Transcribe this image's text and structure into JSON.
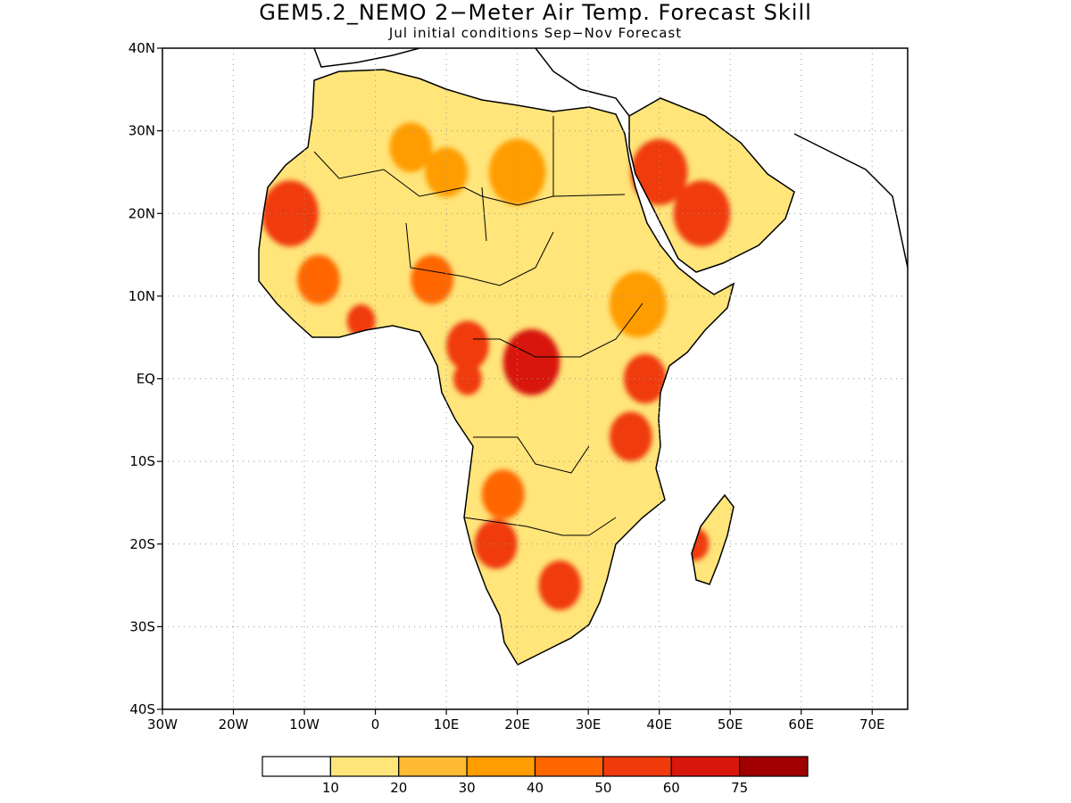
{
  "title": "GEM5.2_NEMO 2−Meter Air Temp. Forecast Skill",
  "subtitle": "Jul initial conditions   Sep−Nov Forecast",
  "map": {
    "lon_range": [
      -30,
      75
    ],
    "lat_range": [
      -40,
      40
    ],
    "lat_ticks": [
      {
        "value": 40,
        "label": "40N"
      },
      {
        "value": 30,
        "label": "30N"
      },
      {
        "value": 20,
        "label": "20N"
      },
      {
        "value": 10,
        "label": "10N"
      },
      {
        "value": 0,
        "label": "EQ"
      },
      {
        "value": -10,
        "label": "10S"
      },
      {
        "value": -20,
        "label": "20S"
      },
      {
        "value": -30,
        "label": "30S"
      },
      {
        "value": -40,
        "label": "40S"
      }
    ],
    "lon_ticks": [
      {
        "value": -30,
        "label": "30W"
      },
      {
        "value": -20,
        "label": "20W"
      },
      {
        "value": -10,
        "label": "10W"
      },
      {
        "value": 0,
        "label": "0"
      },
      {
        "value": 10,
        "label": "10E"
      },
      {
        "value": 20,
        "label": "20E"
      },
      {
        "value": 30,
        "label": "30E"
      },
      {
        "value": 40,
        "label": "40E"
      },
      {
        "value": 50,
        "label": "50E"
      },
      {
        "value": 60,
        "label": "60E"
      },
      {
        "value": 70,
        "label": "70E"
      }
    ],
    "grid": "dotted"
  },
  "colorbar": {
    "colors": [
      "#ffffff",
      "#ffe57a",
      "#ffbb33",
      "#ff9c00",
      "#ff6600",
      "#f03a0c",
      "#d8160a",
      "#a00000"
    ],
    "labels": [
      "10",
      "20",
      "30",
      "40",
      "50",
      "60",
      "75"
    ]
  },
  "chart_data": {
    "type": "heatmap",
    "title": "GEM5.2_NEMO 2−Meter Air Temp. Forecast Skill",
    "subtitle": "Jul initial conditions   Sep−Nov Forecast",
    "xlim": [
      -30,
      75
    ],
    "ylim": [
      -40,
      40
    ],
    "legend": "bottom",
    "levels": [
      10,
      20,
      30,
      40,
      50,
      60,
      75
    ],
    "regions": [
      {
        "lon": -12,
        "lat": 20,
        "r": 4,
        "value": 55
      },
      {
        "lon": -8,
        "lat": 12,
        "r": 3,
        "value": 40
      },
      {
        "lon": -2,
        "lat": 7,
        "r": 2,
        "value": 55
      },
      {
        "lon": 5,
        "lat": 28,
        "r": 3,
        "value": 30
      },
      {
        "lon": 10,
        "lat": 25,
        "r": 3,
        "value": 35
      },
      {
        "lon": 20,
        "lat": 25,
        "r": 4,
        "value": 35
      },
      {
        "lon": 8,
        "lat": 12,
        "r": 3,
        "value": 40
      },
      {
        "lon": 13,
        "lat": 4,
        "r": 3,
        "value": 55
      },
      {
        "lon": 22,
        "lat": 2,
        "r": 4,
        "value": 60
      },
      {
        "lon": 13,
        "lat": 0,
        "r": 2,
        "value": 55
      },
      {
        "lon": 38,
        "lat": 0,
        "r": 3,
        "value": 55
      },
      {
        "lon": 36,
        "lat": -7,
        "r": 3,
        "value": 50
      },
      {
        "lon": 37,
        "lat": 9,
        "r": 4,
        "value": 30
      },
      {
        "lon": 40,
        "lat": 25,
        "r": 4,
        "value": 50
      },
      {
        "lon": 46,
        "lat": 20,
        "r": 4,
        "value": 55
      },
      {
        "lon": 18,
        "lat": -14,
        "r": 3,
        "value": 45
      },
      {
        "lon": 17,
        "lat": -20,
        "r": 3,
        "value": 50
      },
      {
        "lon": 26,
        "lat": -25,
        "r": 3,
        "value": 55
      },
      {
        "lon": 45,
        "lat": -20,
        "r": 2,
        "value": 55
      }
    ]
  }
}
